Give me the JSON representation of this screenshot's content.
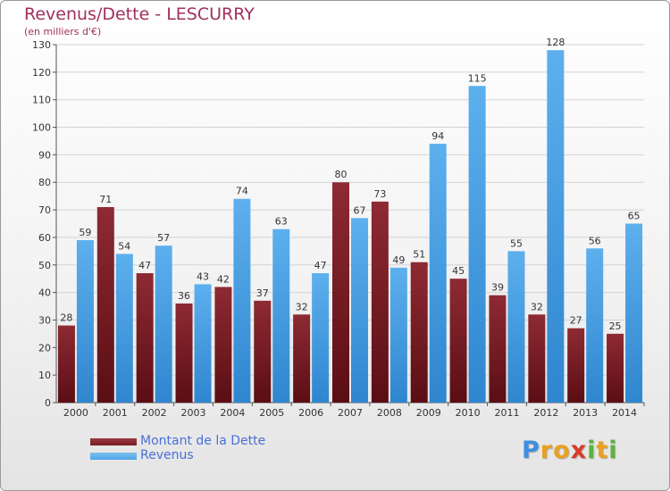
{
  "header": {
    "title": "Revenus/Dette - LESCURRY",
    "subtitle": "(en milliers d'€)"
  },
  "colors": {
    "dette": "#7a1a22",
    "revenus": "#4ea6e8",
    "title": "#a0305e",
    "legend_text": "#4a6fd8"
  },
  "chart_data": {
    "type": "bar",
    "categories": [
      "2000",
      "2001",
      "2002",
      "2003",
      "2004",
      "2005",
      "2006",
      "2007",
      "2008",
      "2009",
      "2010",
      "2011",
      "2012",
      "2013",
      "2014"
    ],
    "series": [
      {
        "name": "Montant de la Dette",
        "values": [
          28,
          71,
          47,
          36,
          42,
          37,
          32,
          80,
          73,
          51,
          45,
          39,
          32,
          27,
          25
        ]
      },
      {
        "name": "Revenus",
        "values": [
          59,
          54,
          57,
          43,
          74,
          63,
          47,
          67,
          49,
          94,
          115,
          55,
          128,
          56,
          65
        ]
      }
    ],
    "title": "Revenus/Dette - LESCURRY",
    "subtitle": "(en milliers d'€)",
    "ylim": [
      0,
      130
    ],
    "yticks": [
      0,
      10,
      20,
      30,
      40,
      50,
      60,
      70,
      80,
      90,
      100,
      110,
      120,
      130
    ],
    "grid": true,
    "legend_position": "bottom-left"
  },
  "legend": {
    "items": [
      {
        "label": "Montant de la Dette"
      },
      {
        "label": "Revenus"
      }
    ]
  },
  "logo": {
    "letters": [
      "P",
      "r",
      "o",
      "x",
      "i",
      "t",
      "i"
    ],
    "colors": [
      "#3d8fe0",
      "#e8a020",
      "#e8a020",
      "#d93a2a",
      "#5ab43c",
      "#e8a020",
      "#5ab43c"
    ]
  }
}
